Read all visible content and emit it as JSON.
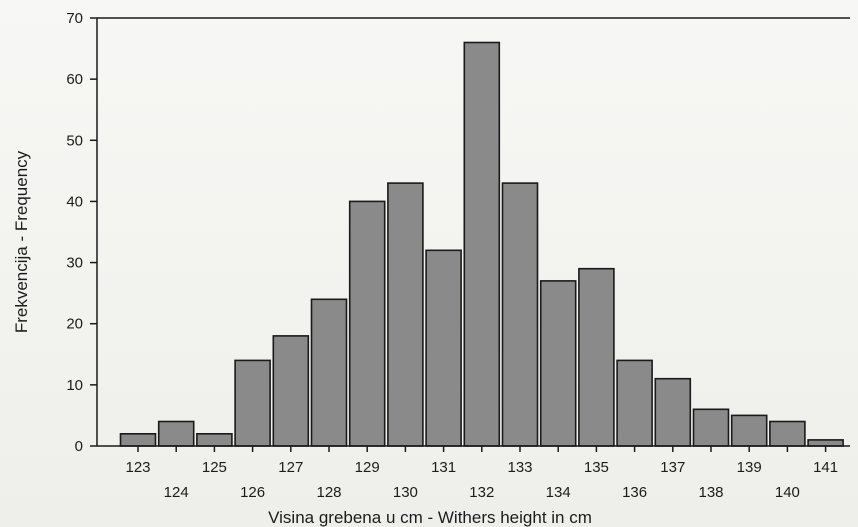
{
  "chart_data": {
    "type": "bar",
    "title": "",
    "xlabel": "Visina grebena u cm - Withers height in cm",
    "ylabel": "Frekvencija - Frequency",
    "ylim": [
      0,
      70
    ],
    "yticks": [
      0,
      10,
      20,
      30,
      40,
      50,
      60,
      70
    ],
    "grid": false,
    "categories": [
      "123",
      "124",
      "125",
      "126",
      "127",
      "128",
      "129",
      "130",
      "131",
      "132",
      "133",
      "134",
      "135",
      "136",
      "137",
      "138",
      "139",
      "140",
      "141"
    ],
    "values": [
      2,
      4,
      2,
      14,
      18,
      24,
      40,
      43,
      32,
      66,
      43,
      27,
      29,
      14,
      11,
      6,
      5,
      4,
      1
    ],
    "bar_color": "#8a8a8a",
    "bar_edge_color": "#1a1a1a"
  }
}
